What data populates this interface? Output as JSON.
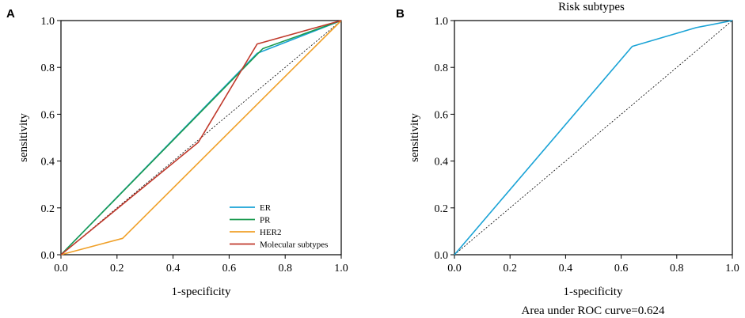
{
  "chart_data": [
    {
      "panel": "A",
      "type": "line",
      "title": "",
      "xlabel": "1-specificity",
      "ylabel": "sensitivity",
      "xlim": [
        0,
        1
      ],
      "ylim": [
        0,
        1
      ],
      "xticks": [
        "0.0",
        "0.2",
        "0.4",
        "0.6",
        "0.8",
        "1.0"
      ],
      "yticks": [
        "0.0",
        "0.2",
        "0.4",
        "0.6",
        "0.8",
        "1.0"
      ],
      "legend_position": "bottom-right",
      "reference_line": [
        [
          0,
          0
        ],
        [
          1,
          1
        ]
      ],
      "series": [
        {
          "name": "ER",
          "color": "#1aa3d6",
          "x": [
            0,
            0.7,
            1
          ],
          "y": [
            0,
            0.86,
            1
          ]
        },
        {
          "name": "PR",
          "color": "#1a9a4f",
          "x": [
            0,
            0.72,
            1
          ],
          "y": [
            0,
            0.88,
            1
          ]
        },
        {
          "name": "HER2",
          "color": "#f0a028",
          "x": [
            0,
            0.22,
            1
          ],
          "y": [
            0,
            0.07,
            1
          ]
        },
        {
          "name": "Molecular subtypes",
          "color": "#c0392b",
          "x": [
            0,
            0.49,
            0.7,
            1
          ],
          "y": [
            0,
            0.48,
            0.9,
            1
          ]
        }
      ]
    },
    {
      "panel": "B",
      "type": "line",
      "title": "Risk subtypes",
      "xlabel": "1-specificity",
      "ylabel": "sensitivity",
      "xlim": [
        0,
        1
      ],
      "ylim": [
        0,
        1
      ],
      "xticks": [
        "0.0",
        "0.2",
        "0.4",
        "0.6",
        "0.8",
        "1.0"
      ],
      "yticks": [
        "0.0",
        "0.2",
        "0.4",
        "0.6",
        "0.8",
        "1.0"
      ],
      "annotation": "Area under ROC curve=0.624",
      "reference_line": [
        [
          0,
          0
        ],
        [
          1,
          1
        ]
      ],
      "series": [
        {
          "name": "Risk subtypes",
          "color": "#1aa3d6",
          "x": [
            0,
            0.64,
            0.87,
            1
          ],
          "y": [
            0,
            0.89,
            0.97,
            1
          ]
        }
      ]
    }
  ]
}
